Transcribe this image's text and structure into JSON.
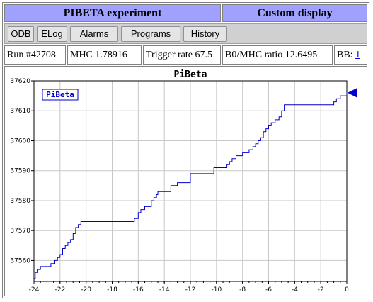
{
  "header": {
    "title": "PIBETA experiment",
    "custom_display": "Custom display"
  },
  "toolbar": {
    "buttons": [
      "ODB",
      "ELog",
      "Alarms",
      "Programs",
      "History"
    ]
  },
  "status": {
    "run": "Run #42708",
    "mhc": "MHC 1.78916",
    "trigger_rate": "Trigger rate 67.5",
    "b0_mhc_ratio": "B0/MHC ratio 12.6495",
    "bb_label": "BB:",
    "bb_value": "1"
  },
  "colors": {
    "title_bg": "#a0a0ff",
    "line": "#0000cc",
    "marker": "#0000cc",
    "grid": "#c8c8c8"
  },
  "chart_data": {
    "type": "line",
    "title": "PiBeta",
    "legend": [
      "PiBeta"
    ],
    "legend_position": "top-left",
    "grid": true,
    "xlim": [
      -24,
      0
    ],
    "ylim": [
      37553,
      37620
    ],
    "xticks": [
      "-24",
      "-22",
      "-20",
      "-18",
      "-16",
      "-14",
      "-12",
      "-10",
      "-8",
      "-6",
      "-4",
      "-2",
      "0"
    ],
    "yticks": [
      "37560",
      "37570",
      "37580",
      "37590",
      "37600",
      "37610",
      "37620"
    ],
    "series": [
      {
        "name": "PiBeta",
        "x": [
          -24,
          -23.9,
          -23.75,
          -23.6,
          -23.5,
          -23.4,
          -22.7,
          -22.4,
          -22.2,
          -22.0,
          -21.8,
          -21.6,
          -21.4,
          -21.2,
          -21.0,
          -20.8,
          -20.6,
          -20.4,
          -20.2,
          -20.0,
          -16.5,
          -16.3,
          -16.0,
          -15.8,
          -15.5,
          -15.2,
          -15.0,
          -14.8,
          -14.6,
          -14.5,
          -14.3,
          -13.8,
          -13.5,
          -13.0,
          -12.0,
          -10.5,
          -10.2,
          -9.5,
          -9.2,
          -9.0,
          -8.8,
          -8.5,
          -8.0,
          -7.5,
          -7.2,
          -7.0,
          -6.8,
          -6.6,
          -6.4,
          -6.2,
          -6.0,
          -5.8,
          -5.5,
          -5.2,
          -5.0,
          -4.8,
          -4.7,
          -1.2,
          -1.0,
          -0.8,
          -0.5,
          -0.2,
          0
        ],
        "values": [
          37554,
          37556,
          37557,
          37557,
          37558,
          37558,
          37559,
          37560,
          37561,
          37562,
          37564,
          37565,
          37566,
          37567,
          37569,
          37571,
          37572,
          37573,
          37573,
          37573,
          37573,
          37574,
          37576,
          37577,
          37578,
          37578,
          37580,
          37581,
          37582,
          37583,
          37583,
          37583,
          37585,
          37586,
          37589,
          37589,
          37591,
          37591,
          37592,
          37593,
          37594,
          37595,
          37596,
          37597,
          37598,
          37599,
          37600,
          37601,
          37603,
          37604,
          37605,
          37606,
          37607,
          37608,
          37610,
          37612,
          37612,
          37612,
          37613,
          37614,
          37615,
          37615,
          37616
        ]
      }
    ]
  }
}
